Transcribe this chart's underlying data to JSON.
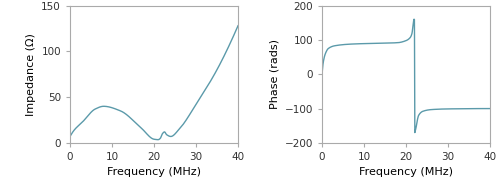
{
  "fig_width": 5.0,
  "fig_height": 1.88,
  "dpi": 100,
  "left_xlabel": "Frequency (MHz)",
  "left_ylabel": "Impedance (Ω)",
  "right_xlabel": "Frequency (MHz)",
  "right_ylabel": "Phase (rads)",
  "left_xlim": [
    0,
    40
  ],
  "left_ylim": [
    0,
    150
  ],
  "right_xlim": [
    0,
    40
  ],
  "right_ylim": [
    -200,
    200
  ],
  "left_xticks": [
    0,
    10,
    20,
    30,
    40
  ],
  "left_yticks": [
    0,
    50,
    100,
    150
  ],
  "right_xticks": [
    0,
    10,
    20,
    30,
    40
  ],
  "right_yticks": [
    -200,
    -100,
    0,
    100,
    200
  ],
  "line_color": "#5b9aaa",
  "line_width": 1.0,
  "background_color": "#ffffff",
  "spine_color": "#aaaaaa",
  "tick_color": "#aaaaaa",
  "label_fontsize": 8,
  "tick_fontsize": 7.5,
  "imp_xp": [
    0,
    1,
    3,
    6,
    8,
    12,
    17,
    20,
    21,
    21.5,
    22,
    22.5,
    23,
    24,
    26,
    30,
    35,
    40
  ],
  "imp_yp": [
    7,
    14,
    23,
    37,
    40,
    35,
    16,
    4,
    3.5,
    5,
    10,
    12,
    9,
    7,
    15,
    42,
    80,
    128
  ],
  "phase_xp": [
    0,
    0.3,
    0.8,
    1.5,
    3,
    7,
    12,
    18,
    20,
    21,
    21.4,
    21.7,
    21.85,
    22.0,
    22.1,
    22.2,
    22.4,
    22.6,
    23,
    24,
    26,
    30,
    40
  ],
  "phase_yp": [
    0,
    35,
    60,
    75,
    83,
    88,
    90,
    92,
    98,
    107,
    118,
    145,
    160,
    160,
    -170,
    -165,
    -155,
    -140,
    -120,
    -108,
    -103,
    -101,
    -100
  ]
}
